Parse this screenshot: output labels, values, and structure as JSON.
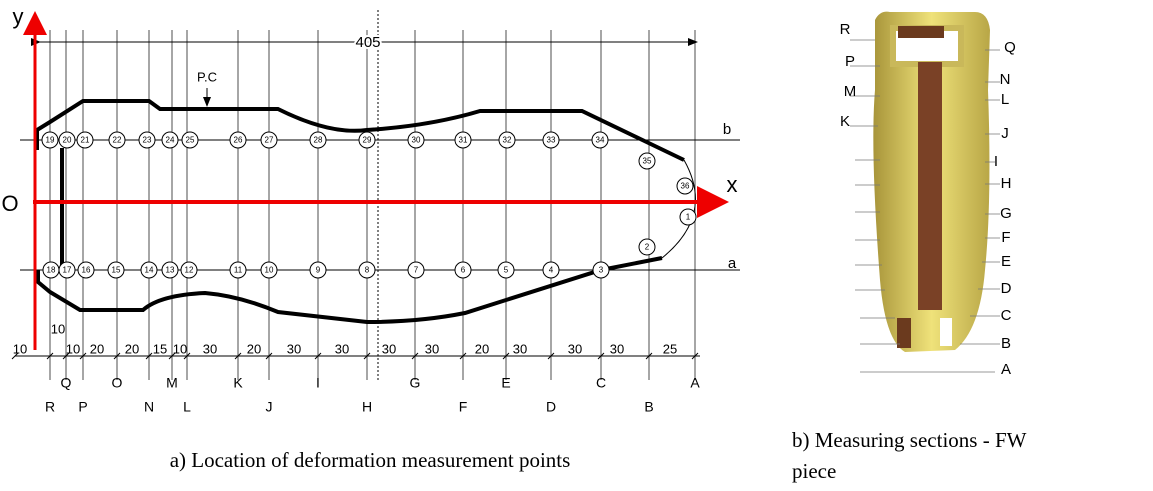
{
  "diagram_a": {
    "axis_y": "y",
    "axis_x": "x",
    "origin": "O",
    "total_length": "405",
    "profile_label": "P.C",
    "line_b": "b",
    "line_a": "a",
    "points_b": [
      "19",
      "20",
      "21",
      "22",
      "23",
      "24",
      "25",
      "26",
      "27",
      "28",
      "29",
      "30",
      "31",
      "32",
      "33",
      "34"
    ],
    "points_a": [
      "18",
      "17",
      "16",
      "15",
      "14",
      "13",
      "12",
      "11",
      "10",
      "9",
      "8",
      "7",
      "6",
      "5",
      "4",
      "3"
    ],
    "points_tip": [
      "35",
      "36",
      "1",
      "2"
    ],
    "dimension_upper": "10",
    "dimensions": [
      "10",
      "10",
      "20",
      "20",
      "15",
      "10",
      "30",
      "20",
      "30",
      "30",
      "30",
      "30",
      "20",
      "30",
      "30",
      "30",
      "25"
    ],
    "sections_upper": [
      "Q",
      "O",
      "M",
      "K",
      "I",
      "G",
      "E",
      "C",
      "A"
    ],
    "sections_lower": [
      "R",
      "P",
      "N",
      "L",
      "J",
      "H",
      "F",
      "D",
      "B"
    ],
    "caption": "a) Location of deformation measurement points"
  },
  "diagram_b": {
    "labels_left": [
      "R",
      "P",
      "M",
      "K"
    ],
    "labels_right": [
      "Q",
      "N",
      "L",
      "J",
      "I",
      "H",
      "G",
      "F",
      "E",
      "D",
      "C",
      "B",
      "A"
    ],
    "caption": "b) Measuring sections - FW piece"
  }
}
